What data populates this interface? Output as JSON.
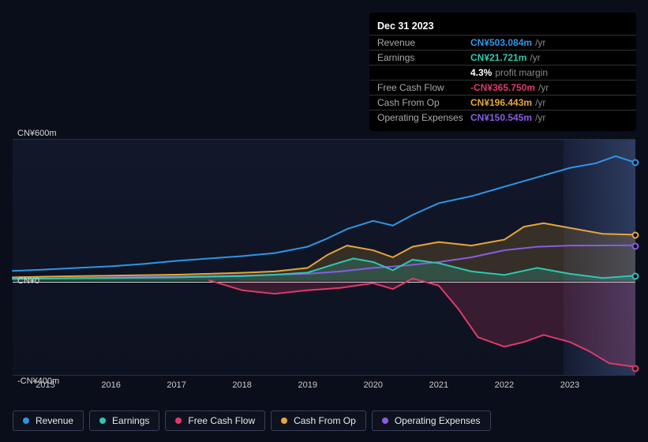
{
  "tooltip": {
    "title": "Dec 31 2023",
    "rows": [
      {
        "label": "Revenue",
        "value": "CN¥503.084m",
        "unit": "/yr",
        "color": "#2f95e6"
      },
      {
        "label": "Earnings",
        "value": "CN¥21.721m",
        "unit": "/yr",
        "color": "#2cc9b0"
      },
      {
        "label": "",
        "value": "4.3%",
        "extra": "profit margin",
        "bold": true
      },
      {
        "label": "Free Cash Flow",
        "value": "-CN¥365.750m",
        "unit": "/yr",
        "color": "#e03a6a"
      },
      {
        "label": "Cash From Op",
        "value": "CN¥196.443m",
        "unit": "/yr",
        "color": "#e6a63a"
      },
      {
        "label": "Operating Expenses",
        "value": "CN¥150.545m",
        "unit": "/yr",
        "color": "#8a5ce0"
      }
    ]
  },
  "chart": {
    "type": "line-area",
    "background_color": "#0a0e1a",
    "plot_bg_top": "#12182a",
    "plot_bg_bottom": "#0d1220",
    "border_color": "#2a3142",
    "zero_line_color": "#dfe3ea",
    "highlight_start": 2022.9,
    "highlight_end": 2024.0,
    "x_domain": [
      2014.5,
      2024.0
    ],
    "y_domain": [
      -400,
      600
    ],
    "y_ticks": [
      {
        "v": 600,
        "label": "CN¥600m"
      },
      {
        "v": 0,
        "label": "CN¥0"
      },
      {
        "v": -400,
        "label": "-CN¥400m"
      }
    ],
    "x_ticks": [
      2015,
      2016,
      2017,
      2018,
      2019,
      2020,
      2021,
      2022,
      2023
    ],
    "label_fontsize": 11,
    "line_width": 2,
    "series": [
      {
        "key": "revenue",
        "name": "Revenue",
        "color": "#2f95e6",
        "area": false,
        "area_opacity": 0.0,
        "points": [
          [
            2014.5,
            42
          ],
          [
            2015,
            48
          ],
          [
            2015.5,
            55
          ],
          [
            2016,
            62
          ],
          [
            2016.5,
            72
          ],
          [
            2017,
            85
          ],
          [
            2017.5,
            95
          ],
          [
            2018,
            105
          ],
          [
            2018.5,
            118
          ],
          [
            2019,
            145
          ],
          [
            2019.3,
            180
          ],
          [
            2019.6,
            220
          ],
          [
            2020,
            255
          ],
          [
            2020.3,
            235
          ],
          [
            2020.6,
            280
          ],
          [
            2021,
            330
          ],
          [
            2021.5,
            360
          ],
          [
            2022,
            400
          ],
          [
            2022.5,
            440
          ],
          [
            2023,
            480
          ],
          [
            2023.4,
            500
          ],
          [
            2023.7,
            530
          ],
          [
            2024,
            503
          ]
        ]
      },
      {
        "key": "cashop",
        "name": "Cash From Op",
        "color": "#e6a63a",
        "area": true,
        "area_opacity": 0.18,
        "points": [
          [
            2014.5,
            15
          ],
          [
            2015,
            18
          ],
          [
            2016,
            22
          ],
          [
            2017,
            26
          ],
          [
            2017.5,
            30
          ],
          [
            2018,
            34
          ],
          [
            2018.5,
            40
          ],
          [
            2019,
            55
          ],
          [
            2019.3,
            110
          ],
          [
            2019.6,
            150
          ],
          [
            2020,
            130
          ],
          [
            2020.3,
            100
          ],
          [
            2020.6,
            145
          ],
          [
            2021,
            165
          ],
          [
            2021.5,
            150
          ],
          [
            2022,
            175
          ],
          [
            2022.3,
            230
          ],
          [
            2022.6,
            245
          ],
          [
            2023,
            225
          ],
          [
            2023.5,
            200
          ],
          [
            2024,
            196
          ]
        ]
      },
      {
        "key": "opex",
        "name": "Operating Expenses",
        "color": "#8a5ce0",
        "area": false,
        "area_opacity": 0.0,
        "points": [
          [
            2014.5,
            10
          ],
          [
            2016,
            14
          ],
          [
            2017,
            18
          ],
          [
            2018,
            22
          ],
          [
            2019,
            30
          ],
          [
            2019.5,
            40
          ],
          [
            2020,
            55
          ],
          [
            2020.5,
            65
          ],
          [
            2021,
            80
          ],
          [
            2021.5,
            100
          ],
          [
            2022,
            130
          ],
          [
            2022.5,
            145
          ],
          [
            2023,
            150
          ],
          [
            2024,
            151
          ]
        ]
      },
      {
        "key": "earnings",
        "name": "Earnings",
        "color": "#2cc9b0",
        "area": true,
        "area_opacity": 0.22,
        "points": [
          [
            2014.5,
            8
          ],
          [
            2015,
            10
          ],
          [
            2016,
            12
          ],
          [
            2017,
            15
          ],
          [
            2018,
            20
          ],
          [
            2018.5,
            26
          ],
          [
            2019,
            35
          ],
          [
            2019.4,
            70
          ],
          [
            2019.7,
            95
          ],
          [
            2020,
            80
          ],
          [
            2020.3,
            45
          ],
          [
            2020.6,
            90
          ],
          [
            2021,
            75
          ],
          [
            2021.5,
            40
          ],
          [
            2022,
            25
          ],
          [
            2022.5,
            55
          ],
          [
            2023,
            30
          ],
          [
            2023.5,
            12
          ],
          [
            2024,
            22
          ]
        ]
      },
      {
        "key": "fcf",
        "name": "Free Cash Flow",
        "color": "#e03a6a",
        "area": true,
        "area_opacity": 0.2,
        "points": [
          [
            2017.5,
            2
          ],
          [
            2018,
            -40
          ],
          [
            2018.5,
            -55
          ],
          [
            2019,
            -40
          ],
          [
            2019.5,
            -30
          ],
          [
            2020,
            -10
          ],
          [
            2020.3,
            -35
          ],
          [
            2020.6,
            10
          ],
          [
            2021,
            -20
          ],
          [
            2021.3,
            -120
          ],
          [
            2021.6,
            -240
          ],
          [
            2022,
            -280
          ],
          [
            2022.3,
            -260
          ],
          [
            2022.6,
            -230
          ],
          [
            2023,
            -260
          ],
          [
            2023.3,
            -300
          ],
          [
            2023.6,
            -350
          ],
          [
            2024,
            -366
          ]
        ]
      }
    ]
  },
  "legend": {
    "border_color": "#3a4158",
    "text_color": "#e5e8f0",
    "items": [
      {
        "label": "Revenue",
        "color": "#2f95e6"
      },
      {
        "label": "Earnings",
        "color": "#2cc9b0"
      },
      {
        "label": "Free Cash Flow",
        "color": "#e03a6a"
      },
      {
        "label": "Cash From Op",
        "color": "#e6a63a"
      },
      {
        "label": "Operating Expenses",
        "color": "#8a5ce0"
      }
    ]
  }
}
